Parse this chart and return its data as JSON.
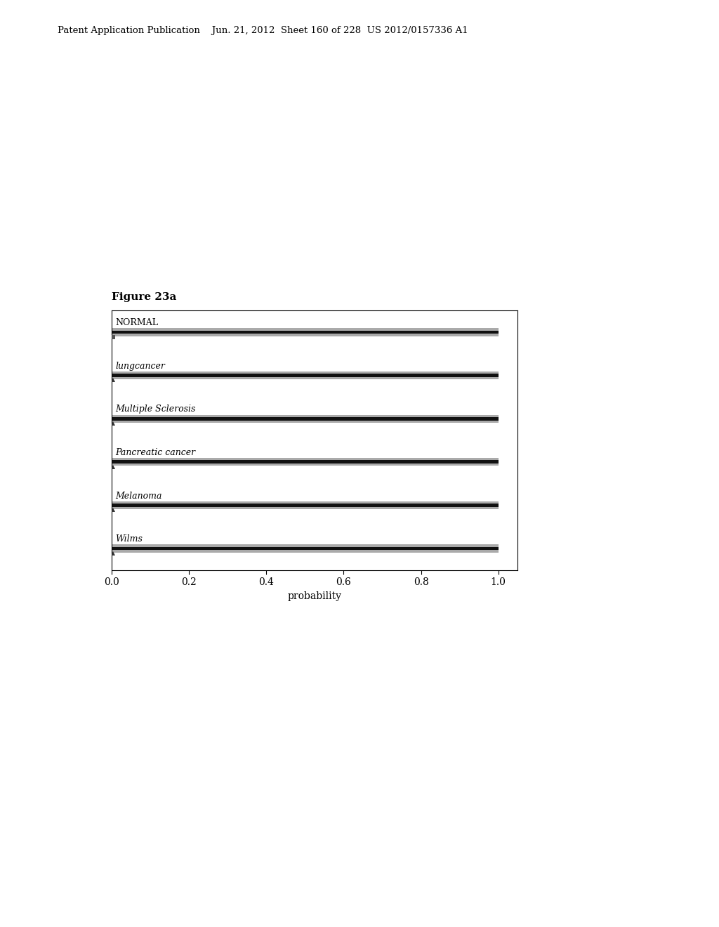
{
  "title": "Figure 23a",
  "xlabel": "probability",
  "categories": [
    "NORMAL",
    "lungcancer",
    "Multiple Sclerosis",
    "Pancreatic cancer",
    "Melanoma",
    "Wilms"
  ],
  "bar_values": [
    1.0,
    1.0,
    1.0,
    1.0,
    1.0,
    1.0
  ],
  "xlim": [
    0.0,
    1.05
  ],
  "xticks": [
    0.0,
    0.2,
    0.4,
    0.6,
    0.8,
    1.0
  ],
  "background_color": "#ffffff",
  "figure_label": "Figure 23a",
  "header_text": "Patent Application Publication    Jun. 21, 2012  Sheet 160 of 228  US 2012/0157336 A1"
}
